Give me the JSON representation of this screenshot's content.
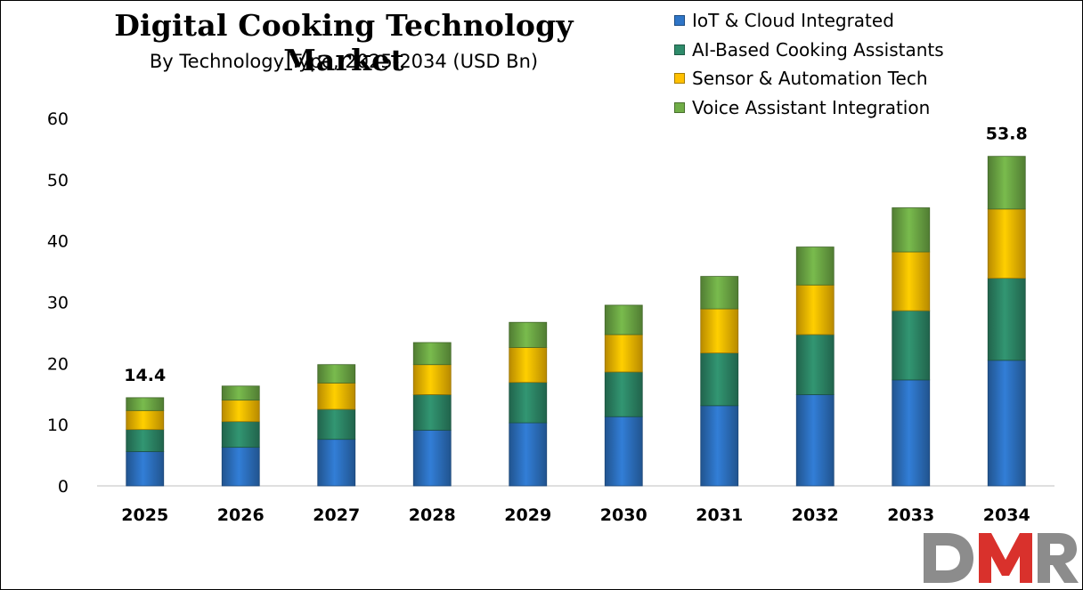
{
  "chart_data": {
    "type": "bar",
    "stacked": true,
    "title": "Digital Cooking Technology Market",
    "subtitle": "By Technology Type, 2025-2034 (USD Bn)",
    "categories": [
      "2025",
      "2026",
      "2027",
      "2028",
      "2029",
      "2030",
      "2031",
      "2032",
      "2033",
      "2034"
    ],
    "series": [
      {
        "name": "IoT & Cloud Integrated",
        "color": "#2e75c7",
        "values": [
          5.6,
          6.3,
          7.6,
          9.1,
          10.3,
          11.3,
          13.1,
          14.9,
          17.3,
          20.5
        ]
      },
      {
        "name": "AI-Based Cooking Assistants",
        "color": "#2e8b6a",
        "values": [
          3.6,
          4.2,
          4.9,
          5.8,
          6.6,
          7.3,
          8.6,
          9.8,
          11.3,
          13.4
        ]
      },
      {
        "name": "Sensor & Automation Tech",
        "color": "#ffc000",
        "values": [
          3.1,
          3.5,
          4.3,
          4.9,
          5.7,
          6.1,
          7.2,
          8.1,
          9.6,
          11.3
        ]
      },
      {
        "name": "Voice Assistant Integration",
        "color": "#70ad47",
        "values": [
          2.1,
          2.3,
          3.0,
          3.6,
          4.1,
          4.8,
          5.3,
          6.2,
          7.2,
          8.6
        ]
      }
    ],
    "data_labels": [
      {
        "category": "2025",
        "text": "14.4"
      },
      {
        "category": "2034",
        "text": "53.8"
      }
    ],
    "y_ticks": [
      "0",
      "10",
      "20",
      "30",
      "40",
      "50",
      "60"
    ],
    "ylim": [
      0,
      60
    ],
    "xlabel": "",
    "ylabel": "",
    "grid": false,
    "legend_position": "top-right"
  },
  "logo": {
    "text": "DMR",
    "colors": [
      "#8c8c8c",
      "#d9312c"
    ]
  }
}
